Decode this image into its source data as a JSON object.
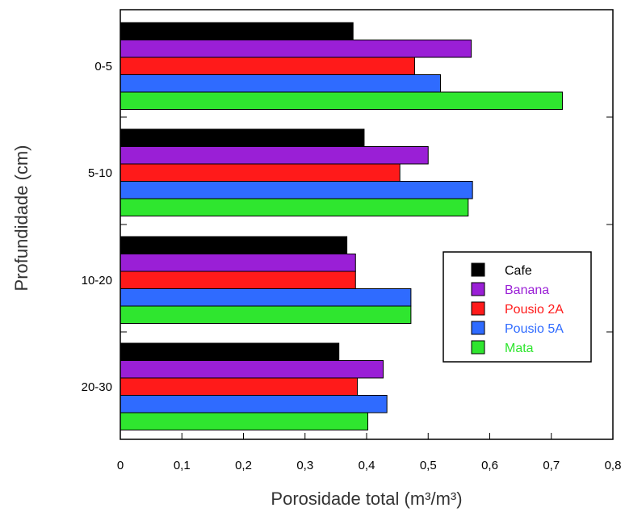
{
  "chart_data": {
    "type": "bar",
    "orientation": "horizontal",
    "xlabel": "Porosidade total (m³/m³)",
    "ylabel": "Profundidade (cm)",
    "xlim": [
      0,
      0.8
    ],
    "xticks": [
      "0",
      "0,1",
      "0,2",
      "0,3",
      "0,4",
      "0,5",
      "0,6",
      "0,7",
      "0,8"
    ],
    "categories": [
      "0-5",
      "5-10",
      "10-20",
      "20-30"
    ],
    "grid": false,
    "legend_position": "right",
    "series": [
      {
        "name": "Cafe",
        "color": "#000000",
        "text_color": "#000000",
        "values": [
          0.378,
          0.396,
          0.368,
          0.355
        ]
      },
      {
        "name": "Banana",
        "color": "#9a1fd6",
        "text_color": "#9a1fd6",
        "values": [
          0.57,
          0.5,
          0.382,
          0.427
        ]
      },
      {
        "name": "Pousio 2A",
        "color": "#ff1a1a",
        "text_color": "#ff1a1a",
        "values": [
          0.478,
          0.454,
          0.382,
          0.385
        ]
      },
      {
        "name": "Pousio 5A",
        "color": "#2f6bff",
        "text_color": "#2f6bff",
        "values": [
          0.52,
          0.572,
          0.472,
          0.433
        ]
      },
      {
        "name": "Mata",
        "color": "#2fe62f",
        "text_color": "#2fe62f",
        "values": [
          0.718,
          0.565,
          0.472,
          0.402
        ]
      }
    ]
  }
}
